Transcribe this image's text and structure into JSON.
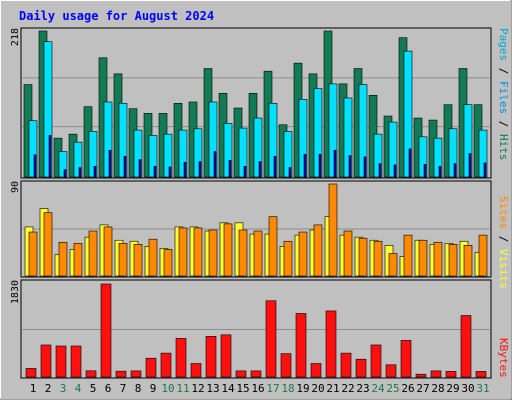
{
  "title": "Daily usage for August 2024",
  "colors": {
    "background": "#c0c0c0",
    "title": "#0000ff",
    "hits": "#127a55",
    "files": "#00e0ff",
    "pages": "#0000d0",
    "visits": "#ffff30",
    "sites": "#ff8a00",
    "kbytes": "#ff1010",
    "weekend_day": "#1a7a4a",
    "weekday": "#000000",
    "grid": "#8e8e8e"
  },
  "right_labels": {
    "top": [
      "Pages",
      " / ",
      "Files",
      " / ",
      "Hits"
    ],
    "middle": [
      "Sites",
      " / ",
      "Visits"
    ],
    "bottom": [
      "KBytes"
    ]
  },
  "chart_data": [
    {
      "type": "bar",
      "panel": "hits-files-pages",
      "x": [
        1,
        2,
        3,
        4,
        5,
        6,
        7,
        8,
        9,
        10,
        11,
        12,
        13,
        14,
        15,
        16,
        17,
        18,
        19,
        20,
        21,
        22,
        23,
        24,
        25,
        26,
        27,
        28,
        29,
        30,
        31
      ],
      "ymax_label": "218",
      "ylim": [
        0,
        218
      ],
      "series": [
        {
          "name": "Hits",
          "values": [
            138,
            218,
            58,
            64,
            105,
            178,
            154,
            102,
            95,
            95,
            110,
            112,
            162,
            125,
            103,
            125,
            158,
            78,
            170,
            154,
            218,
            139,
            162,
            122,
            91,
            208,
            88,
            85,
            108,
            162,
            108
          ]
        },
        {
          "name": "Files",
          "values": [
            84,
            202,
            38,
            52,
            68,
            112,
            110,
            70,
            62,
            64,
            70,
            72,
            112,
            80,
            73,
            88,
            110,
            68,
            116,
            132,
            139,
            118,
            138,
            64,
            82,
            188,
            60,
            58,
            72,
            108,
            70
          ]
        },
        {
          "name": "Pages",
          "values": [
            33,
            62,
            11,
            14,
            16,
            40,
            31,
            26,
            16,
            15,
            22,
            23,
            38,
            25,
            16,
            23,
            31,
            14,
            34,
            34,
            40,
            32,
            30,
            20,
            18,
            42,
            19,
            16,
            20,
            35,
            21
          ]
        }
      ]
    },
    {
      "type": "bar",
      "panel": "visits-sites",
      "x": [
        1,
        2,
        3,
        4,
        5,
        6,
        7,
        8,
        9,
        10,
        11,
        12,
        13,
        14,
        15,
        16,
        17,
        18,
        19,
        20,
        21,
        22,
        23,
        24,
        25,
        26,
        27,
        28,
        29,
        30,
        31
      ],
      "ymax_label": "90",
      "ylim": [
        0,
        90
      ],
      "series": [
        {
          "name": "Visits",
          "values": [
            48,
            66,
            21,
            26,
            38,
            50,
            35,
            34,
            29,
            27,
            48,
            48,
            44,
            52,
            52,
            41,
            41,
            29,
            40,
            45,
            58,
            40,
            38,
            35,
            30,
            19,
            35,
            31,
            32,
            34,
            23
          ]
        },
        {
          "name": "Sites",
          "values": [
            43,
            62,
            33,
            32,
            44,
            48,
            32,
            31,
            36,
            26,
            47,
            47,
            45,
            51,
            45,
            44,
            58,
            34,
            43,
            50,
            90,
            44,
            37,
            34,
            22,
            40,
            35,
            33,
            31,
            30,
            40
          ]
        }
      ]
    },
    {
      "type": "bar",
      "panel": "kbytes",
      "x": [
        1,
        2,
        3,
        4,
        5,
        6,
        7,
        8,
        9,
        10,
        11,
        12,
        13,
        14,
        15,
        16,
        17,
        18,
        19,
        20,
        21,
        22,
        23,
        24,
        25,
        26,
        27,
        28,
        29,
        30,
        31
      ],
      "ymax_label": "1830",
      "ylim": [
        0,
        1830
      ],
      "series": [
        {
          "name": "KBytes",
          "values": [
            168,
            630,
            610,
            610,
            122,
            1830,
            115,
            120,
            370,
            470,
            760,
            265,
            800,
            830,
            120,
            120,
            1500,
            460,
            1250,
            265,
            1300,
            470,
            350,
            630,
            240,
            720,
            55,
            120,
            110,
            1210,
            110
          ]
        }
      ]
    }
  ],
  "day_labels": [
    "1",
    "2",
    "3",
    "4",
    "5",
    "6",
    "7",
    "8",
    "9",
    "10",
    "11",
    "12",
    "13",
    "14",
    "15",
    "16",
    "17",
    "18",
    "19",
    "20",
    "21",
    "22",
    "23",
    "24",
    "25",
    "26",
    "27",
    "28",
    "29",
    "30",
    "31"
  ],
  "weekend_days": [
    3,
    4,
    10,
    11,
    17,
    18,
    24,
    25,
    31
  ]
}
